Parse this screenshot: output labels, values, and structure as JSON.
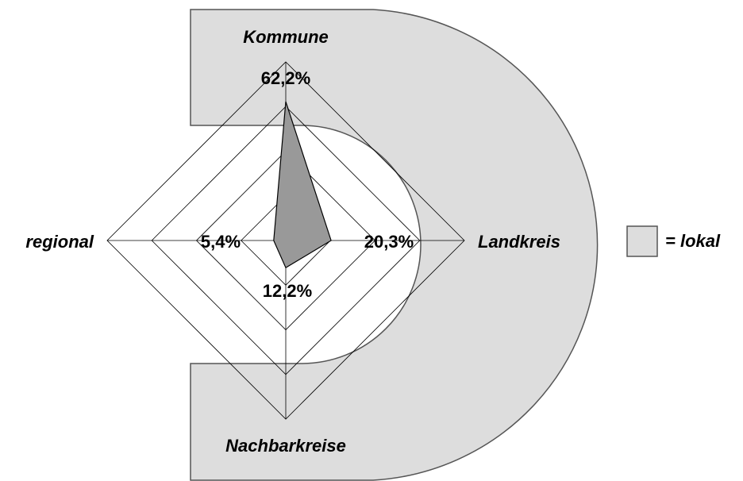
{
  "chart_data": {
    "type": "radar",
    "categories": [
      "Kommune",
      "Landkreis",
      "Nachbarkreise",
      "regional"
    ],
    "values": [
      62.2,
      20.3,
      12.2,
      5.4
    ],
    "value_labels": [
      "62,2%",
      "20,3%",
      "12,2%",
      "5,4%"
    ],
    "color": "#999999",
    "rlim": [
      0,
      80
    ],
    "rticks": [
      20,
      40,
      60,
      80
    ],
    "legend_label": "= lokal",
    "region_color": "#dddddd"
  }
}
